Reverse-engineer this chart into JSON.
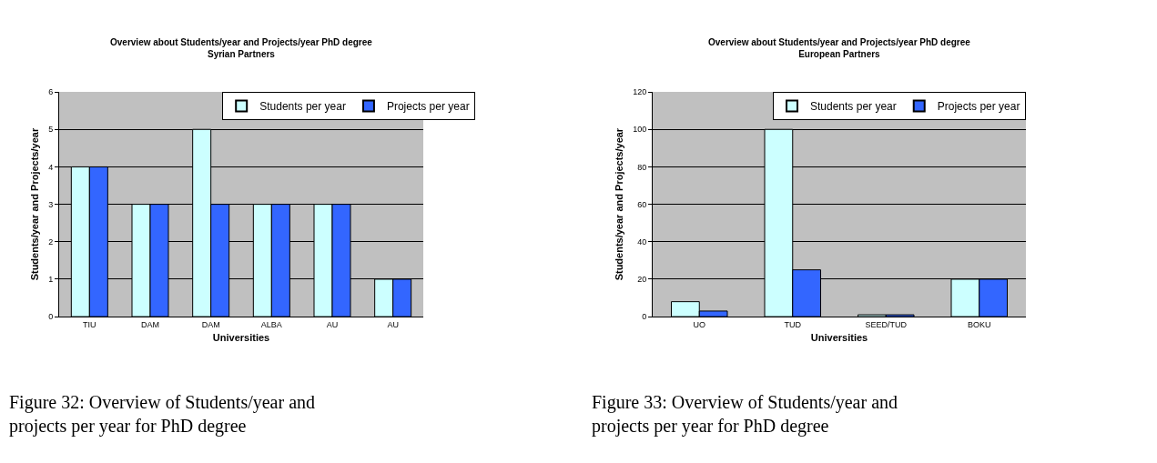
{
  "chart_data": [
    {
      "type": "bar",
      "title": "Overview about Students/year and Projects/year PhD degree",
      "subtitle": "Syrian Partners",
      "xlabel": "Universities",
      "ylabel": "Students/year and Projects/year",
      "categories": [
        "TIU",
        "DAM",
        "DAM",
        "ALBA",
        "AU",
        "AU"
      ],
      "series": [
        {
          "name": "Students per year",
          "color": "#ccffff",
          "values": [
            4,
            3,
            5,
            3,
            3,
            1
          ]
        },
        {
          "name": "Projects per year",
          "color": "#3366ff",
          "values": [
            4,
            3,
            3,
            3,
            3,
            1
          ]
        }
      ],
      "ylim": [
        0,
        6
      ],
      "yticks": [
        0,
        1,
        2,
        3,
        4,
        5,
        6
      ],
      "grid": "y",
      "legend": "top right",
      "annotations": [
        "Figure 32: Overview of Students/year and projects per year for PhD degree"
      ]
    },
    {
      "type": "bar",
      "title": "Overview about Students/year and Projects/year PhD degree",
      "subtitle": "European Partners",
      "xlabel": "Universities",
      "ylabel": "Students/year and Projects/year",
      "categories": [
        "UO",
        "TUD",
        "SEED/TUD",
        "BOKU"
      ],
      "series": [
        {
          "name": "Students per year",
          "color": "#ccffff",
          "values": [
            8,
            100,
            1,
            20
          ]
        },
        {
          "name": "Projects per year",
          "color": "#3366ff",
          "values": [
            3,
            25,
            1,
            20
          ]
        }
      ],
      "ylim": [
        0,
        120
      ],
      "yticks": [
        0,
        20,
        40,
        60,
        80,
        100,
        120
      ],
      "grid": "y",
      "legend": "top right",
      "annotations": [
        "Figure 33: Overview of Students/year and projects per year for PhD degree"
      ]
    }
  ]
}
